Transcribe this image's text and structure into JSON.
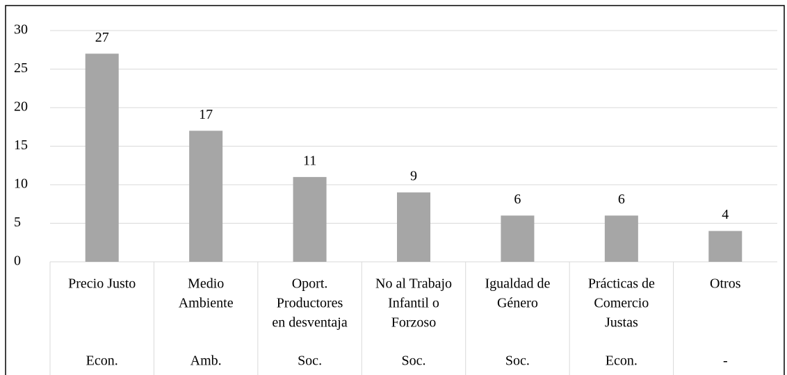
{
  "chart_data": {
    "type": "bar",
    "categories": [
      [
        "Precio Justo"
      ],
      [
        "Medio",
        "Ambiente"
      ],
      [
        "Oport.",
        "Productores",
        "en desventaja"
      ],
      [
        "No al Trabajo",
        "Infantil o",
        "Forzoso"
      ],
      [
        "Igualdad de",
        "Género"
      ],
      [
        "Prácticas de",
        "Comercio",
        "Justas"
      ],
      [
        "Otros"
      ]
    ],
    "groups": [
      "Econ.",
      "Amb.",
      "Soc.",
      "Soc.",
      "Soc.",
      "Econ.",
      "-"
    ],
    "values": [
      27,
      17,
      11,
      9,
      6,
      6,
      4
    ],
    "color": "#a6a6a6",
    "ylim": [
      0,
      30
    ],
    "yticks": [
      0,
      5,
      10,
      15,
      20,
      25,
      30
    ],
    "grid": true
  }
}
